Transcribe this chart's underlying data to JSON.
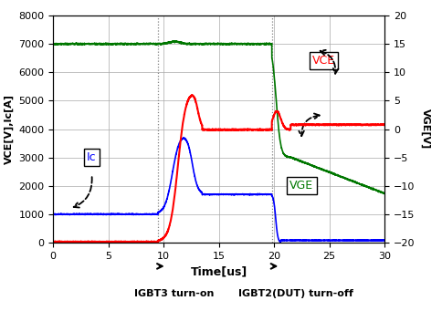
{
  "title": "",
  "xlabel": "Time[us]",
  "ylabel_left": "VCE[V],Ic[A]",
  "ylabel_right": "VGE[V]",
  "xlim": [
    0,
    30
  ],
  "ylim_left": [
    0,
    8000
  ],
  "ylim_right": [
    -20,
    20
  ],
  "yticks_left": [
    0,
    1000,
    2000,
    3000,
    4000,
    5000,
    6000,
    7000,
    8000
  ],
  "yticks_right": [
    -20,
    -15,
    -10,
    -5,
    0,
    5,
    10,
    15,
    20
  ],
  "xticks": [
    0,
    5,
    10,
    15,
    20,
    25,
    30
  ],
  "vline1": 9.5,
  "vline2": 19.8,
  "annotation1_label": "IGBT3 turn-on",
  "annotation2_label": "IGBT2(DUT) turn-off",
  "ic_label": "Ic",
  "vce_label": "VCE",
  "vge_label": "VGE",
  "color_ic": "#0000ff",
  "color_vce": "#ff0000",
  "color_vge": "#007700",
  "bg_color": "#ffffff",
  "grid_color": "#aaaaaa"
}
